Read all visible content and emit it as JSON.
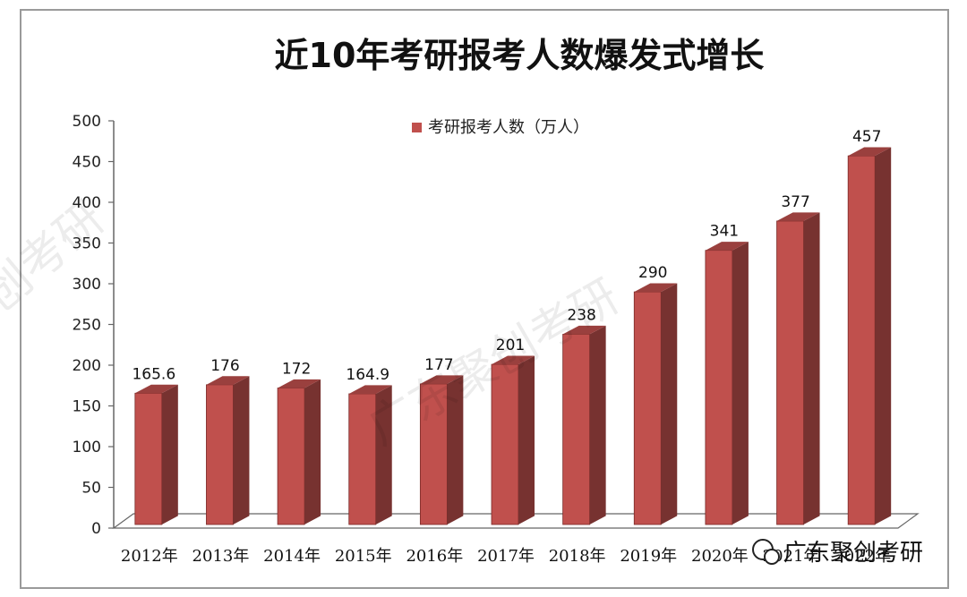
{
  "chart_data": {
    "type": "bar",
    "title": "近10年考研报考人数爆发式增长",
    "categories": [
      "2012年",
      "2013年",
      "2014年",
      "2015年",
      "2016年",
      "2017年",
      "2018年",
      "2019年",
      "2020年",
      "2021年",
      "2022年"
    ],
    "series": [
      {
        "name": "考研报考人数（万人）",
        "values": [
          165.6,
          176,
          172,
          164.9,
          177,
          201,
          238,
          290,
          341,
          377,
          457
        ]
      }
    ],
    "data_labels": [
      "165.6",
      "176",
      "172",
      "164.9",
      "177",
      "201",
      "238",
      "290",
      "341",
      "377",
      "457"
    ],
    "ylim": [
      0,
      500
    ],
    "yticks": [
      "0",
      "50",
      "100",
      "150",
      "200",
      "250",
      "300",
      "350",
      "400",
      "450",
      "500"
    ],
    "grid": false,
    "legend_position": "top-center",
    "bar_color": "#c0504d"
  },
  "watermark": {
    "text": "广东聚创考研",
    "corner_text": "广东聚创考研",
    "left_text": "创考研"
  }
}
